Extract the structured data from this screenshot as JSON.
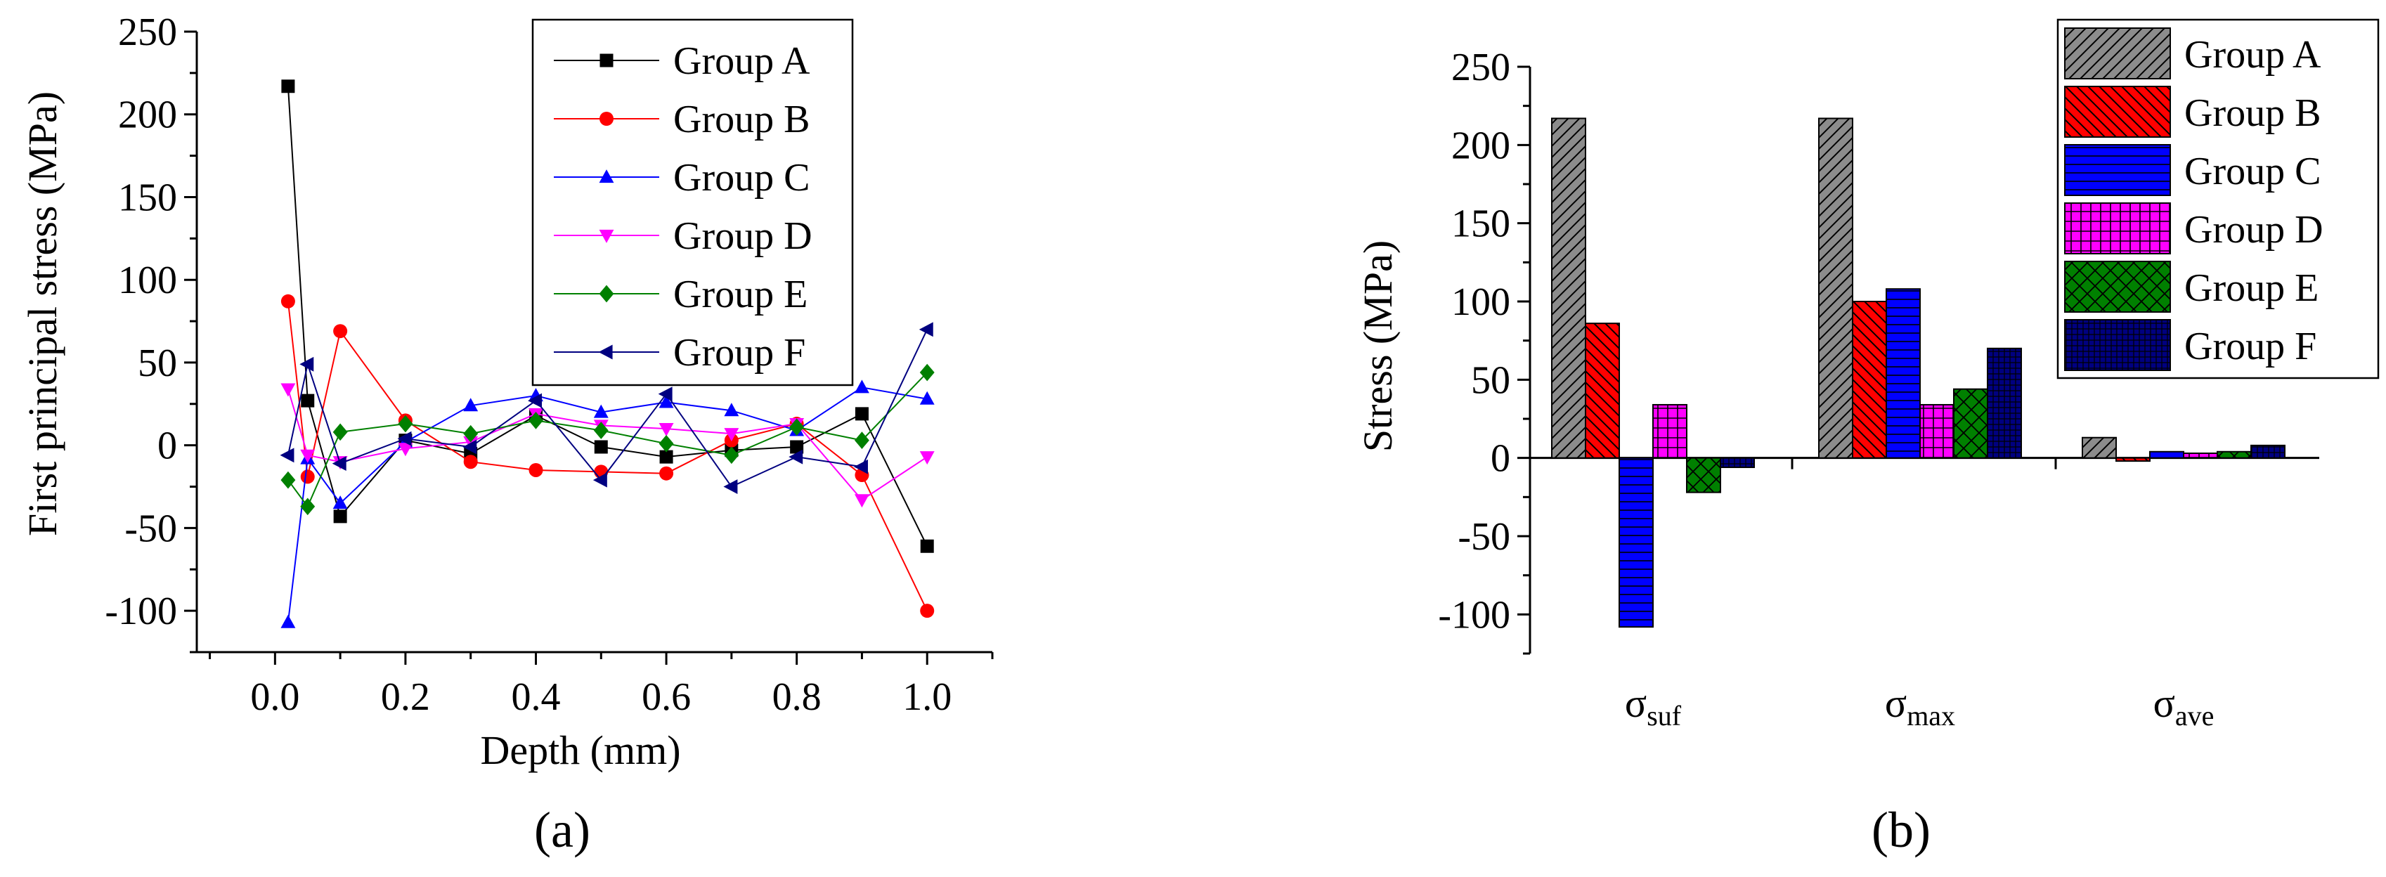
{
  "chart_data": [
    {
      "type": "line",
      "panel_label": "(a)",
      "xlabel": "Depth (mm)",
      "ylabel": "First principal stress (MPa)",
      "xlim": [
        -0.12,
        1.1
      ],
      "ylim": [
        -125,
        250
      ],
      "xticks": [
        "0.0",
        "0.2",
        "0.4",
        "0.6",
        "0.8",
        "1.0"
      ],
      "yticks": [
        "250",
        "200",
        "150",
        "100",
        "50",
        "0",
        "-50",
        "-100"
      ],
      "x": [
        0.02,
        0.05,
        0.1,
        0.2,
        0.3,
        0.4,
        0.5,
        0.6,
        0.7,
        0.8,
        0.9,
        1.0
      ],
      "legend_position": "top-right",
      "series": [
        {
          "name": "Group A",
          "color": "#000000",
          "marker": "square",
          "values": [
            217,
            27,
            -43,
            3,
            -5,
            18,
            -1,
            -7,
            -3,
            -1,
            19,
            -61
          ]
        },
        {
          "name": "Group B",
          "color": "#ff0000",
          "marker": "circle",
          "values": [
            87,
            -19,
            69,
            15,
            -10,
            -15,
            -16,
            -17,
            3,
            13,
            -18,
            -100
          ]
        },
        {
          "name": "Group C",
          "color": "#0000ff",
          "marker": "triangle-up",
          "values": [
            -107,
            -8,
            -35,
            2,
            24,
            30,
            20,
            26,
            21,
            9,
            35,
            28
          ]
        },
        {
          "name": "Group D",
          "color": "#ff00ff",
          "marker": "triangle-down",
          "values": [
            34,
            -6,
            -10,
            -2,
            2,
            19,
            12,
            10,
            7,
            13,
            -33,
            -7
          ]
        },
        {
          "name": "Group E",
          "color": "#008000",
          "marker": "diamond",
          "values": [
            -21,
            -37,
            8,
            13,
            7,
            15,
            9,
            1,
            -6,
            11,
            3,
            44
          ]
        },
        {
          "name": "Group F",
          "color": "#000080",
          "marker": "triangle-left",
          "values": [
            -6,
            49,
            -11,
            4,
            -1,
            27,
            -21,
            31,
            -25,
            -7,
            -13,
            70
          ]
        }
      ]
    },
    {
      "type": "bar",
      "panel_label": "(b)",
      "xlabel": "",
      "ylabel": "Stress (MPa)",
      "ylim": [
        -125,
        250
      ],
      "yticks": [
        "250",
        "200",
        "150",
        "100",
        "50",
        "0",
        "-50",
        "-100"
      ],
      "categories": [
        {
          "base": "σ",
          "sub": "suf"
        },
        {
          "base": "σ",
          "sub": "max"
        },
        {
          "base": "σ",
          "sub": "ave"
        }
      ],
      "legend_position": "top-right",
      "series": [
        {
          "name": "Group A",
          "color": "#8c8c8c",
          "pattern": "diagonal",
          "values": [
            217,
            217,
            13
          ]
        },
        {
          "name": "Group B",
          "color": "#ff0000",
          "pattern": "back-diagonal",
          "values": [
            86,
            100,
            -2
          ]
        },
        {
          "name": "Group C",
          "color": "#0000ff",
          "pattern": "horizontal",
          "values": [
            -108,
            108,
            4
          ]
        },
        {
          "name": "Group D",
          "color": "#ff00ff",
          "pattern": "grid",
          "values": [
            34,
            34,
            3
          ]
        },
        {
          "name": "Group E",
          "color": "#008000",
          "pattern": "crosshatch",
          "values": [
            -22,
            44,
            4
          ]
        },
        {
          "name": "Group F",
          "color": "#000080",
          "pattern": "dense-grid",
          "values": [
            -6,
            70,
            8
          ]
        }
      ]
    }
  ]
}
